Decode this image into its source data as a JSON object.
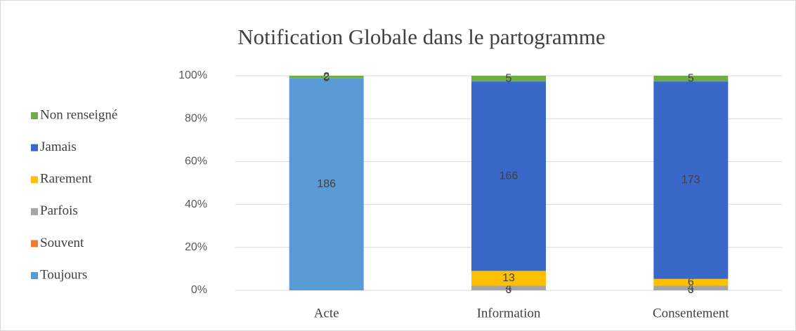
{
  "chart_data": {
    "type": "stacked_bar_percent",
    "title": "Notification Globale dans le partogramme",
    "categories": [
      "Acte",
      "Information",
      "Consentement"
    ],
    "series": [
      {
        "name": "Toujours",
        "color": "#5b9bd5",
        "values": [
          186,
          0,
          0
        ]
      },
      {
        "name": "Souvent",
        "color": "#ed7d31",
        "values": [
          0,
          0,
          0
        ]
      },
      {
        "name": "Parfois",
        "color": "#a5a5a5",
        "values": [
          0,
          4,
          4
        ]
      },
      {
        "name": "Rarement",
        "color": "#ffc000",
        "values": [
          0,
          13,
          6
        ]
      },
      {
        "name": "Jamais",
        "color": "#3a68c8",
        "values": [
          0,
          166,
          173
        ]
      },
      {
        "name": "Non renseigné",
        "color": "#70ad47",
        "values": [
          2,
          5,
          5
        ]
      }
    ],
    "ylim": [
      0,
      100
    ],
    "yticks": [
      {
        "value": 0,
        "label": "0%"
      },
      {
        "value": 20,
        "label": "20%"
      },
      {
        "value": 40,
        "label": "40%"
      },
      {
        "value": 60,
        "label": "60%"
      },
      {
        "value": 80,
        "label": "80%"
      },
      {
        "value": 100,
        "label": "100%"
      }
    ],
    "grid": true,
    "legend": "left"
  }
}
